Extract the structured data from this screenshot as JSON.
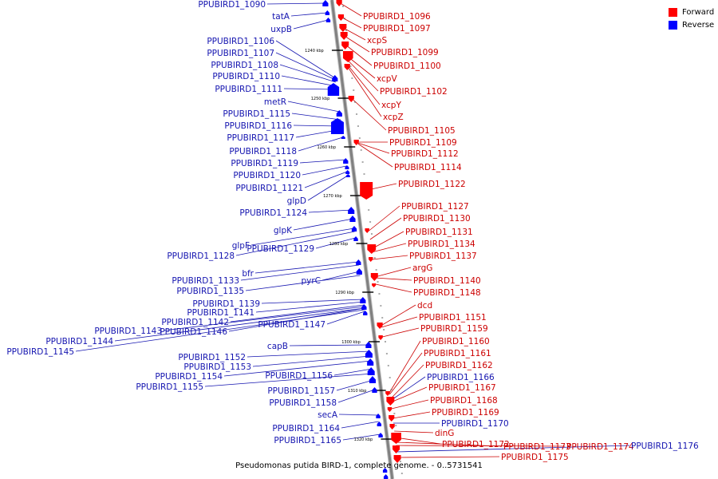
{
  "colors": {
    "forward": "#ff0000",
    "reverse": "#0000ff",
    "backbone": "#808080",
    "label_forward": "#cc0000",
    "label_reverse": "#1515b0"
  },
  "legend": [
    {
      "label": "Forward",
      "color": "#ff0000"
    },
    {
      "label": "Reverse",
      "color": "#0000ff"
    }
  ],
  "caption": "Pseudomonas putida BIRD-1, complete genome. - 0..5731541",
  "ticks": [
    "1240 kbp",
    "1250 kbp",
    "1260 kbp",
    "1270 kbp",
    "1280 kbp",
    "1290 kbp",
    "1300 kbp",
    "1310 kbp",
    "1320 kbp"
  ],
  "reverse_labels": [
    "PPUBIRD1_1090",
    "tatA",
    "uxpB",
    "PPUBIRD1_1106",
    "PPUBIRD1_1107",
    "PPUBIRD1_1108",
    "PPUBIRD1_1110",
    "PPUBIRD1_1111",
    "metR",
    "PPUBIRD1_1115",
    "PPUBIRD1_1116",
    "PPUBIRD1_1117",
    "PPUBIRD1_1118",
    "PPUBIRD1_1119",
    "PPUBIRD1_1120",
    "PPUBIRD1_1121",
    "glpD",
    "PPUBIRD1_1124",
    "glpK",
    "glpF",
    "PPUBIRD1_1128",
    "PPUBIRD1_1129",
    "bfr",
    "PPUBIRD1_1133",
    "pyrC",
    "PPUBIRD1_1135",
    "PPUBIRD1_1139",
    "PPUBIRD1_1141",
    "PPUBIRD1_1142",
    "PPUBIRD1_1143",
    "PPUBIRD1_1146",
    "PPUBIRD1_1147",
    "PPUBIRD1_1144",
    "PPUBIRD1_1145",
    "capB",
    "PPUBIRD1_1152",
    "PPUBIRD1_1153",
    "PPUBIRD1_1154",
    "PPUBIRD1_1156",
    "PPUBIRD1_1155",
    "PPUBIRD1_1157",
    "PPUBIRD1_1158",
    "secA",
    "PPUBIRD1_1164",
    "PPUBIRD1_1165"
  ],
  "forward_labels": [
    "PPUBIRD1_1096",
    "PPUBIRD1_1097",
    "xcpS",
    "PPUBIRD1_1099",
    "PPUBIRD1_1100",
    "xcpV",
    "PPUBIRD1_1102",
    "xcpY",
    "xcpZ",
    "PPUBIRD1_1105",
    "PPUBIRD1_1109",
    "PPUBIRD1_1112",
    "PPUBIRD1_1114",
    "PPUBIRD1_1122",
    "PPUBIRD1_1127",
    "PPUBIRD1_1130",
    "PPUBIRD1_1131",
    "PPUBIRD1_1134",
    "PPUBIRD1_1137",
    "argG",
    "PPUBIRD1_1140",
    "PPUBIRD1_1148",
    "dcd",
    "PPUBIRD1_1151",
    "PPUBIRD1_1159",
    "PPUBIRD1_1160",
    "PPUBIRD1_1161",
    "PPUBIRD1_1162",
    "PPUBIRD1_1167",
    "PPUBIRD1_1168",
    "PPUBIRD1_1169",
    "dinG",
    "PPUBIRD1_1172",
    "PPUBIRD1_1173",
    "PPUBIRD1_1174",
    "PPUBIRD1_1175"
  ],
  "right_reverse_labels": [
    "PPUBIRD1_1166",
    "PPUBIRD1_1170",
    "PPUBIRD1_1176"
  ]
}
